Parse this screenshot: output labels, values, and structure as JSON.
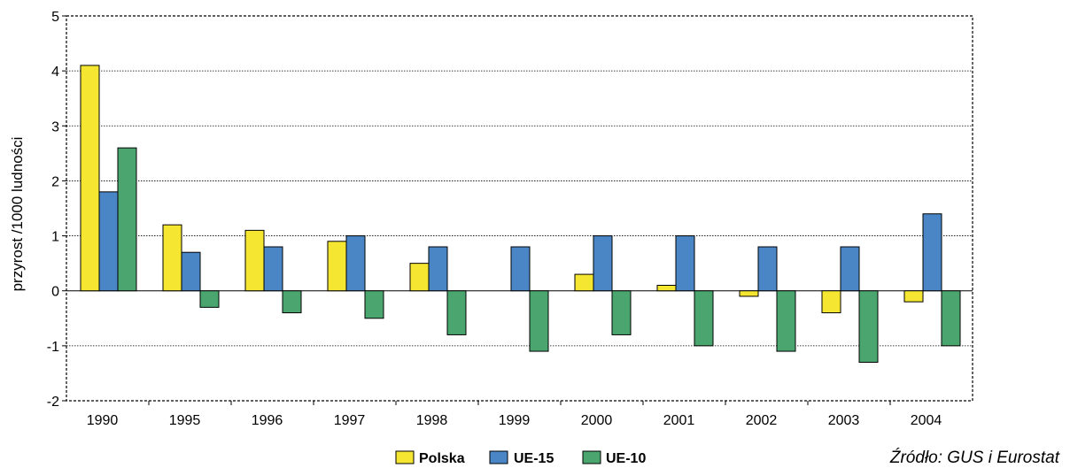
{
  "chart_data": {
    "type": "bar",
    "categories": [
      "1990",
      "1995",
      "1996",
      "1997",
      "1998",
      "1999",
      "2000",
      "2001",
      "2002",
      "2003",
      "2004"
    ],
    "series": [
      {
        "name": "Polska",
        "color": "#f5e632",
        "values": [
          4.1,
          1.2,
          1.1,
          0.9,
          0.5,
          0.0,
          0.3,
          0.1,
          -0.1,
          -0.4,
          -0.2
        ]
      },
      {
        "name": "UE-15",
        "color": "#4a86c6",
        "values": [
          1.8,
          0.7,
          0.8,
          1.0,
          0.8,
          0.8,
          1.0,
          1.0,
          0.8,
          0.8,
          1.4
        ]
      },
      {
        "name": "UE-10",
        "color": "#4aa66e",
        "values": [
          2.6,
          -0.3,
          -0.4,
          -0.5,
          -0.8,
          -1.1,
          -0.8,
          -1.0,
          -1.1,
          -1.3,
          -1.0
        ]
      }
    ],
    "ylabel": "przyrost /1000 ludności",
    "xlabel": "",
    "ylim": [
      -2,
      5
    ],
    "yticks": [
      -2,
      -1,
      0,
      1,
      2,
      3,
      4,
      5
    ],
    "ytick_labels": [
      "-2",
      "-1",
      "0",
      "1",
      "2",
      "3",
      "4",
      "5"
    ],
    "grid": true,
    "legend_position": "bottom-center"
  },
  "source": "Źródło: GUS i Eurostat"
}
